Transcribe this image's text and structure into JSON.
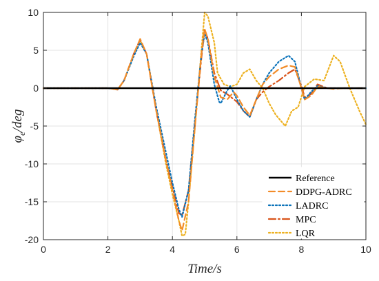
{
  "chart_data": {
    "type": "line",
    "xlabel": "Time/s",
    "ylabel": "φ_e/deg",
    "xlim": [
      0,
      10
    ],
    "ylim": [
      -20,
      10
    ],
    "x_ticks": [
      "0",
      "2",
      "4",
      "6",
      "8",
      "10"
    ],
    "y_ticks": [
      "-20",
      "-15",
      "-10",
      "-5",
      "0",
      "5",
      "10"
    ],
    "grid": true,
    "legend_position": "bottom-right",
    "series": [
      {
        "name": "Reference",
        "color": "#000000",
        "style": "solid",
        "x": [
          0,
          10
        ],
        "y": [
          0,
          0
        ]
      },
      {
        "name": "DDPG-ADRC",
        "color": "#F28C28",
        "style": "dashed",
        "x": [
          0,
          2.0,
          2.2,
          2.3,
          2.5,
          2.8,
          3.0,
          3.2,
          3.5,
          3.8,
          4.0,
          4.2,
          4.3,
          4.5,
          4.7,
          4.9,
          5.0,
          5.1,
          5.3,
          5.5,
          5.7,
          5.9,
          6.0,
          6.2,
          6.4,
          6.6,
          6.8,
          7.0,
          7.3,
          7.6,
          7.8,
          8.0,
          8.1,
          8.3,
          8.5,
          8.8,
          9.0,
          9.3,
          10.0
        ],
        "y": [
          0,
          0,
          -0.1,
          -0.2,
          1.0,
          4.5,
          6.5,
          4.5,
          -3.0,
          -9.5,
          -13.5,
          -17.5,
          -18.8,
          -15.0,
          -5.0,
          4.5,
          7.8,
          6.5,
          1.5,
          -1.2,
          -1.5,
          -0.5,
          -1.0,
          -2.5,
          -3.6,
          -1.5,
          0.5,
          1.5,
          2.5,
          3.0,
          2.8,
          0.0,
          -1.5,
          -1.0,
          0.2,
          0.0,
          -0.1,
          0.0,
          0.0
        ]
      },
      {
        "name": "LADRC",
        "color": "#0A72BA",
        "style": "dotted",
        "x": [
          0,
          2.0,
          2.2,
          2.3,
          2.5,
          2.8,
          3.0,
          3.2,
          3.5,
          3.8,
          4.0,
          4.2,
          4.3,
          4.5,
          4.7,
          4.9,
          5.0,
          5.1,
          5.3,
          5.45,
          5.5,
          5.7,
          5.8,
          6.0,
          6.2,
          6.4,
          6.6,
          6.8,
          7.0,
          7.3,
          7.6,
          7.8,
          8.0,
          8.1,
          8.3,
          8.5,
          8.8,
          9.0,
          10.0
        ],
        "y": [
          0,
          0,
          -0.1,
          -0.2,
          1.0,
          4.2,
          6.0,
          4.5,
          -2.5,
          -8.5,
          -12.5,
          -16.0,
          -17.0,
          -13.5,
          -4.0,
          4.5,
          7.2,
          6.0,
          0.5,
          -1.8,
          -2.0,
          -0.3,
          0.3,
          -1.5,
          -3.0,
          -3.8,
          -1.5,
          0.5,
          2.0,
          3.5,
          4.3,
          3.5,
          0.0,
          -1.5,
          -0.5,
          0.3,
          0.0,
          0.0,
          0.0
        ]
      },
      {
        "name": "MPC",
        "color": "#D95319",
        "style": "dashdot",
        "x": [
          0,
          2.0,
          2.2,
          2.3,
          2.5,
          2.8,
          3.0,
          3.2,
          3.5,
          3.8,
          4.0,
          4.2,
          4.3,
          4.5,
          4.7,
          4.9,
          5.0,
          5.1,
          5.3,
          5.5,
          5.7,
          6.0,
          6.2,
          6.4,
          6.6,
          6.8,
          7.0,
          7.3,
          7.6,
          7.8,
          8.0,
          8.1,
          8.3,
          8.5,
          8.8,
          9.0,
          10.0
        ],
        "y": [
          0,
          0,
          -0.1,
          -0.2,
          1.0,
          4.5,
          6.4,
          4.5,
          -3.0,
          -9.5,
          -13.0,
          -16.5,
          -16.8,
          -13.5,
          -4.5,
          4.0,
          7.7,
          6.5,
          2.0,
          -0.3,
          -0.8,
          -1.8,
          -3.0,
          -3.8,
          -1.5,
          -0.5,
          0.2,
          1.0,
          2.0,
          2.5,
          0.3,
          -1.2,
          -0.8,
          0.5,
          0.0,
          0.0,
          0.0
        ]
      },
      {
        "name": "LQR",
        "color": "#EDB120",
        "style": "dotted",
        "x": [
          0,
          2.0,
          2.2,
          2.3,
          2.5,
          2.8,
          3.0,
          3.2,
          3.5,
          3.8,
          4.0,
          4.2,
          4.3,
          4.4,
          4.5,
          4.7,
          4.9,
          5.0,
          5.1,
          5.3,
          5.4,
          5.6,
          5.8,
          6.0,
          6.2,
          6.4,
          6.6,
          6.8,
          7.0,
          7.2,
          7.5,
          7.7,
          7.9,
          8.1,
          8.4,
          8.7,
          9.0,
          9.2,
          9.5,
          9.8,
          10.0
        ],
        "y": [
          0,
          0,
          -0.1,
          -0.2,
          1.0,
          4.3,
          6.3,
          4.5,
          -3.0,
          -10.0,
          -14.0,
          -17.5,
          -19.5,
          -19.3,
          -15.0,
          -5.0,
          5.0,
          10.0,
          9.5,
          6.0,
          2.0,
          0.5,
          0.2,
          0.5,
          2.0,
          2.5,
          1.0,
          0.0,
          -2.0,
          -3.5,
          -5.0,
          -3.0,
          -2.5,
          0.2,
          1.2,
          1.0,
          4.3,
          3.5,
          0.0,
          -3.0,
          -4.8
        ]
      }
    ]
  }
}
